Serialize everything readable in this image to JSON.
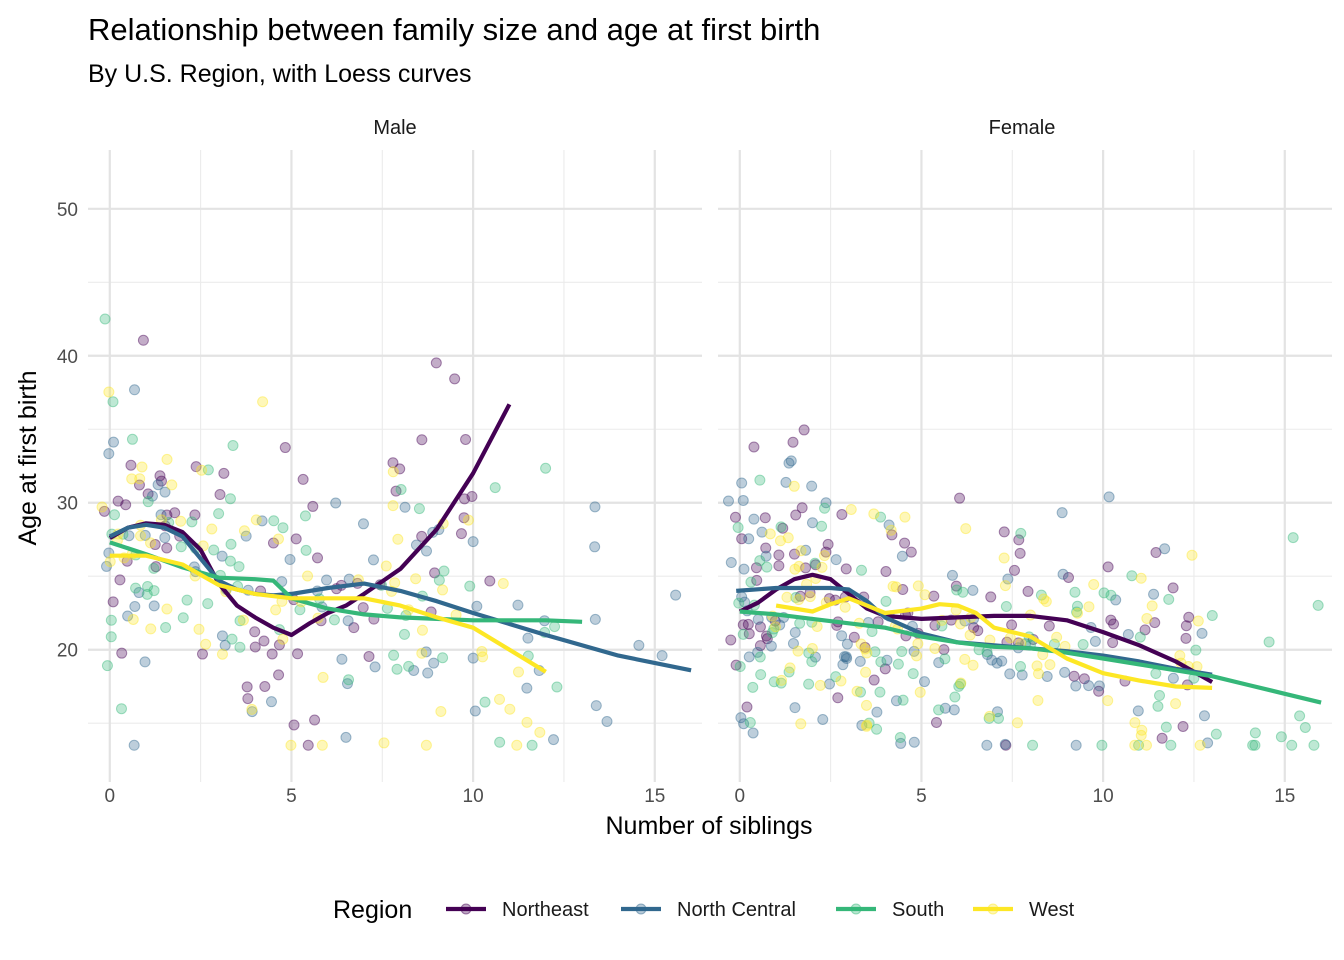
{
  "chart_data": {
    "type": "scatter",
    "title": "Relationship between family size and age at first birth",
    "subtitle": "By U.S. Region, with Loess curves",
    "xlabel": "Number of siblings",
    "ylabel": "Age at first birth",
    "xlim": [
      -0.6,
      16.3
    ],
    "ylim": [
      11.0,
      54.0
    ],
    "x_ticks": [
      0,
      5,
      10,
      15
    ],
    "y_ticks": [
      20,
      30,
      40,
      50
    ],
    "grid": true,
    "legend": {
      "title": "Region",
      "position": "bottom",
      "entries": [
        "Northeast",
        "North Central",
        "South",
        "West"
      ]
    },
    "colors": {
      "Northeast": "#440154",
      "North Central": "#31688E",
      "South": "#35B779",
      "West": "#FDE725"
    },
    "panels": [
      {
        "label": "Male",
        "curves": [
          {
            "name": "Northeast",
            "x": [
              0,
              0.5,
              1,
              1.5,
              2,
              2.5,
              3,
              3.5,
              4,
              4.5,
              5,
              5.5,
              6,
              6.5,
              7,
              8,
              9,
              10,
              11
            ],
            "y": [
              27.6,
              28.3,
              28.6,
              28.5,
              28.0,
              26.8,
              24.5,
              23.0,
              22.2,
              21.5,
              21.0,
              21.8,
              22.5,
              23.0,
              23.8,
              25.5,
              28.2,
              32.0,
              36.7
            ]
          },
          {
            "name": "North Central",
            "x": [
              0,
              0.5,
              1,
              1.5,
              2,
              2.5,
              3,
              3.5,
              4,
              4.5,
              5,
              6,
              7,
              8,
              9,
              10,
              12,
              14,
              16
            ],
            "y": [
              27.7,
              28.3,
              28.5,
              28.3,
              27.7,
              26.2,
              24.7,
              24.1,
              23.8,
              23.7,
              23.8,
              24.2,
              24.5,
              24.0,
              23.3,
              22.5,
              21.0,
              19.6,
              18.6
            ]
          },
          {
            "name": "South",
            "x": [
              0,
              1,
              2,
              3,
              4,
              4.5,
              5,
              6,
              7,
              8,
              9,
              10,
              11,
              12,
              13
            ],
            "y": [
              27.3,
              26.5,
              25.6,
              24.9,
              24.8,
              24.7,
              23.5,
              22.8,
              22.4,
              22.2,
              22.1,
              22.0,
              22.0,
              22.0,
              21.9
            ]
          },
          {
            "name": "West",
            "x": [
              0,
              1,
              2,
              3,
              4,
              5,
              6,
              7,
              8,
              9,
              10,
              11,
              12
            ],
            "y": [
              26.4,
              26.4,
              25.8,
              24.4,
              23.8,
              23.5,
              23.5,
              23.5,
              23.0,
              22.2,
              21.5,
              20.0,
              18.5
            ]
          }
        ]
      },
      {
        "label": "Female",
        "curves": [
          {
            "name": "Northeast",
            "x": [
              0,
              0.5,
              1,
              1.5,
              2,
              2.5,
              3,
              3.5,
              4,
              5,
              6,
              7,
              8,
              9,
              10,
              11,
              12,
              13
            ],
            "y": [
              22.6,
              23.2,
              24.1,
              24.8,
              25.1,
              24.8,
              23.8,
              22.8,
              22.3,
              22.1,
              22.2,
              22.3,
              22.3,
              22.0,
              21.2,
              20.3,
              19.2,
              17.8
            ]
          },
          {
            "name": "North Central",
            "x": [
              -0.1,
              1,
              2,
              2.5,
              3,
              3.5,
              4,
              5,
              6,
              7,
              8,
              9,
              10,
              11,
              12,
              13
            ],
            "y": [
              24.0,
              24.2,
              24.2,
              24.2,
              24.1,
              23.3,
              22.2,
              21.1,
              20.5,
              20.3,
              20.1,
              19.9,
              19.6,
              19.2,
              18.7,
              18.3
            ]
          },
          {
            "name": "South",
            "x": [
              0,
              1,
              2,
              3,
              4,
              5,
              6,
              7,
              8,
              9,
              10,
              11,
              12,
              13,
              14,
              15,
              16
            ],
            "y": [
              22.6,
              22.4,
              22.1,
              21.8,
              21.5,
              20.9,
              20.5,
              20.2,
              20.1,
              19.8,
              19.4,
              19.0,
              18.6,
              18.2,
              17.6,
              17.0,
              16.4
            ]
          },
          {
            "name": "West",
            "x": [
              1,
              2,
              2.5,
              3,
              3.5,
              4,
              5,
              5.5,
              6,
              6.5,
              7,
              8,
              9,
              10,
              11,
              12,
              13
            ],
            "y": [
              23.0,
              22.6,
              23.1,
              23.5,
              23.0,
              22.5,
              22.8,
              23.1,
              23.0,
              22.5,
              21.5,
              20.9,
              19.4,
              18.4,
              17.9,
              17.5,
              17.4
            ]
          }
        ]
      }
    ]
  }
}
